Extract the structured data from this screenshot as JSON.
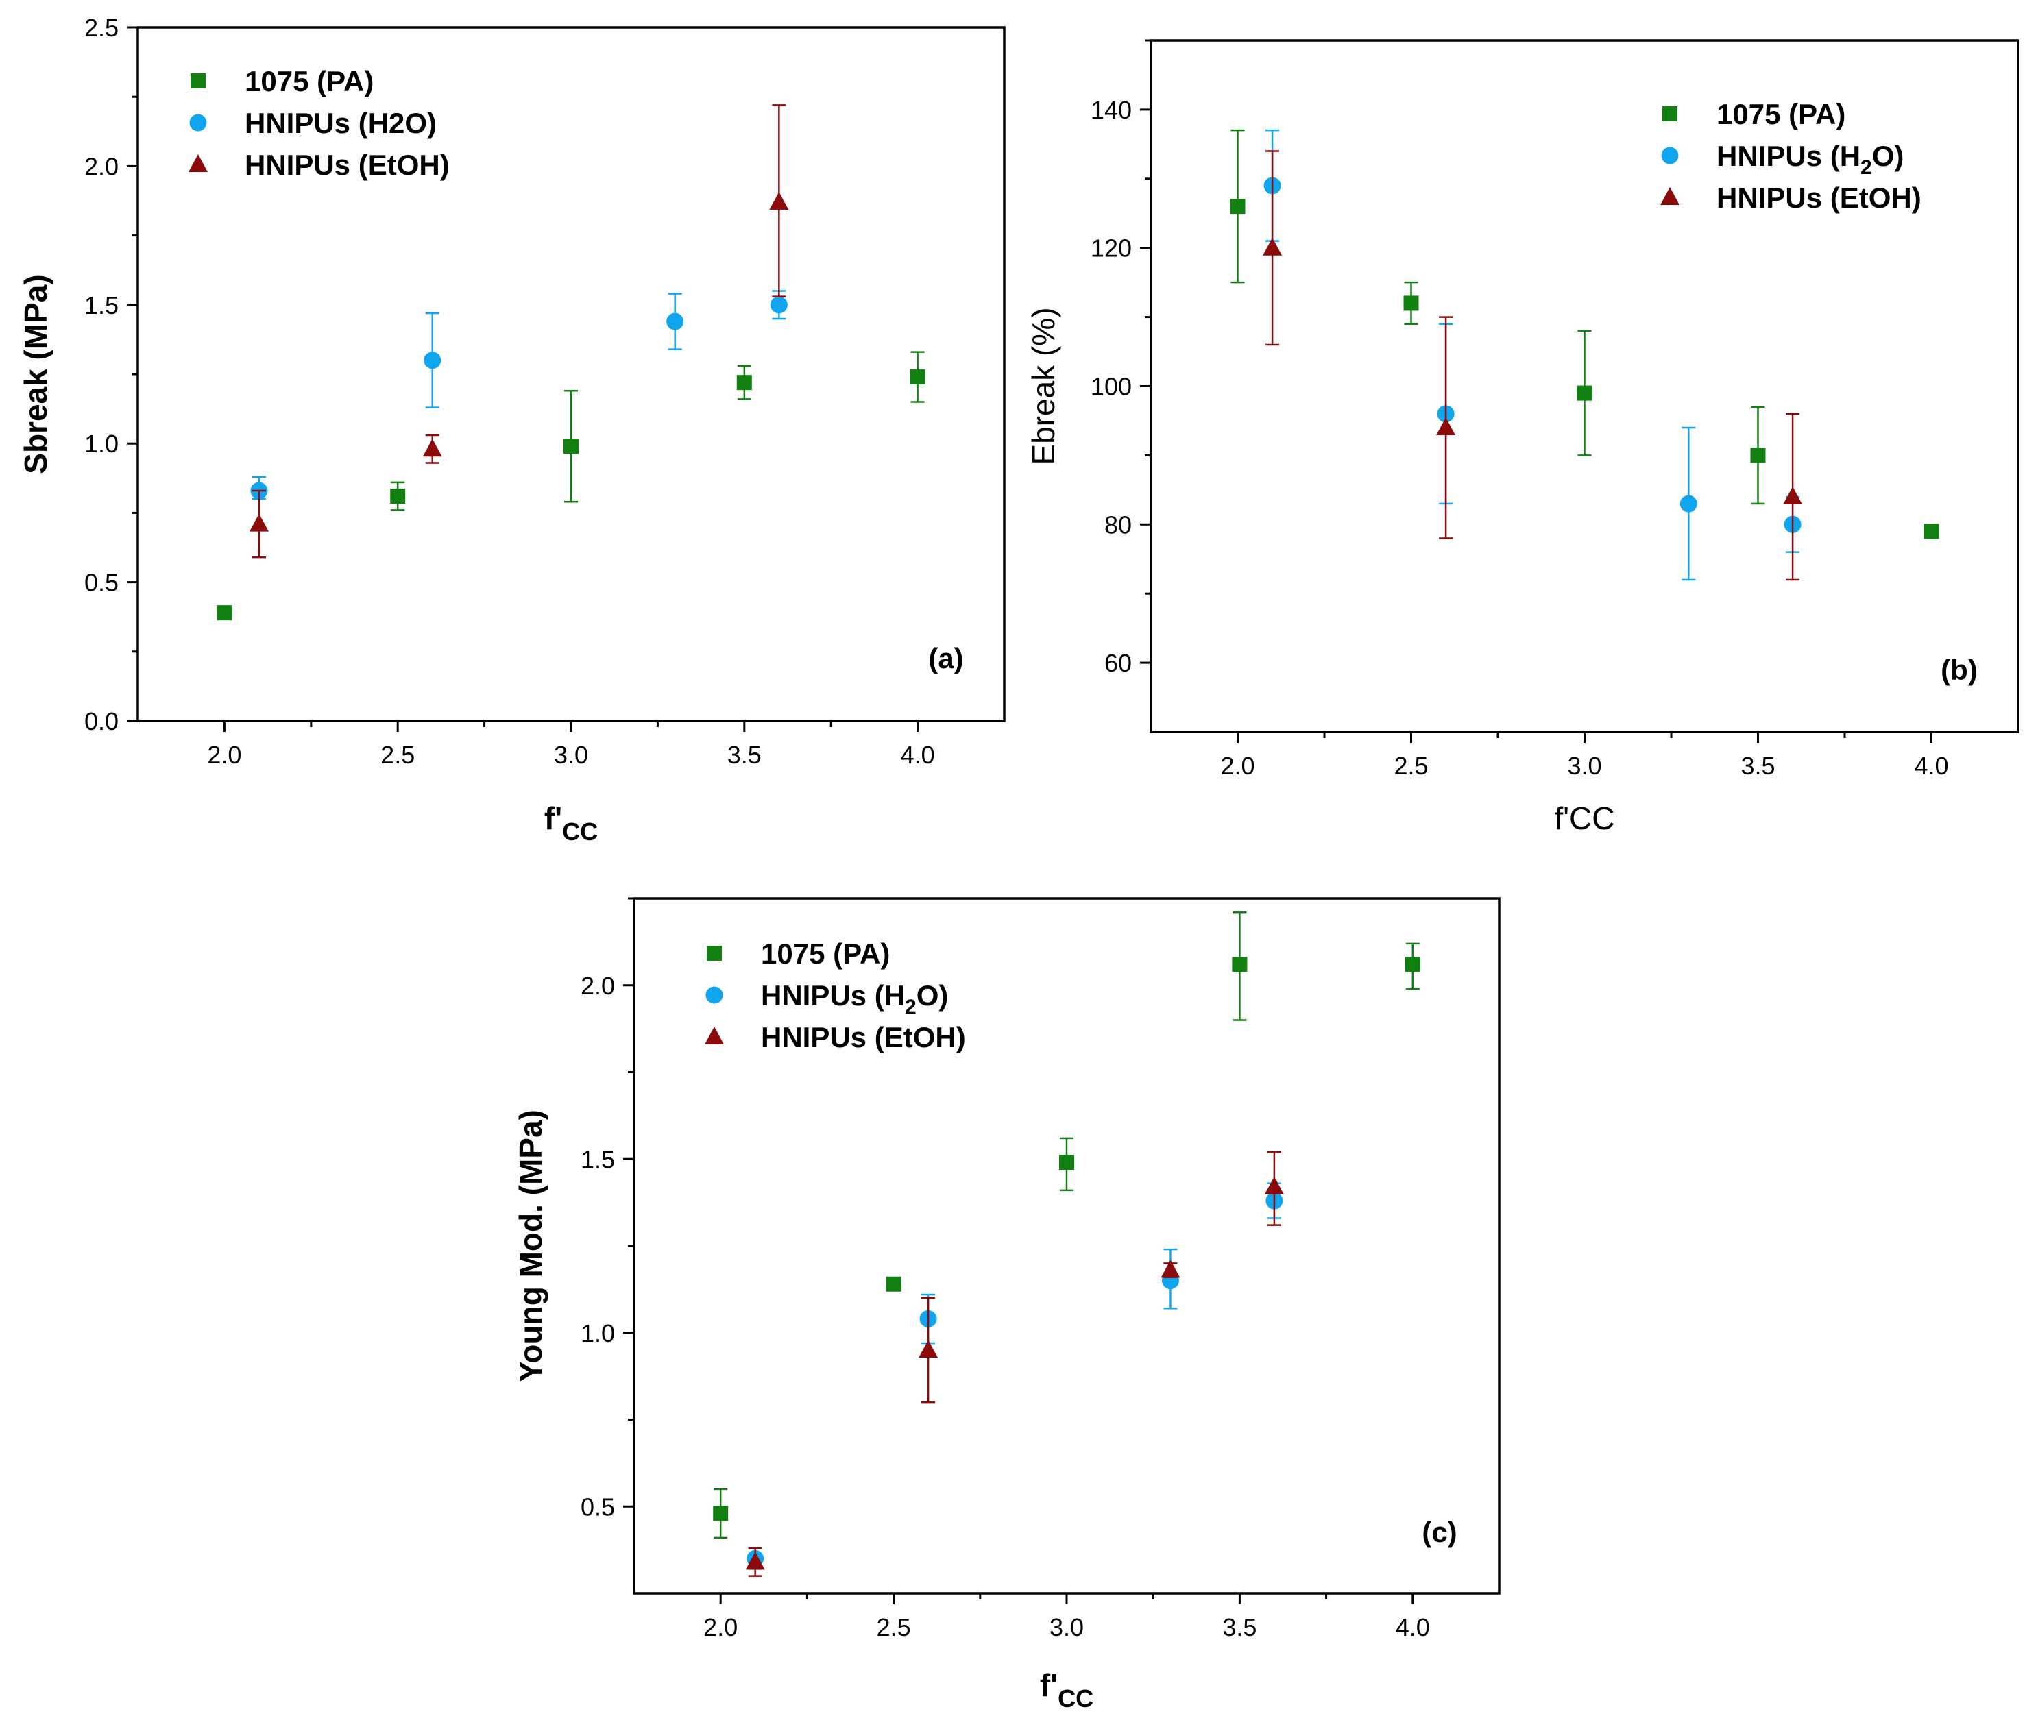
{
  "colors": {
    "pa": "#118011",
    "h2o": "#10a5ef",
    "etoh": "#8b0a0a"
  },
  "chart_data": [
    {
      "id": "a",
      "type": "scatter",
      "panel_label": "(a)",
      "xlabel_main": "f'",
      "xlabel_sub": "CC",
      "ylabel": "Sbreak (MPa)",
      "xlim": [
        1.75,
        4.25
      ],
      "ylim": [
        0.0,
        2.5
      ],
      "xticks": [
        "2.0",
        "2.5",
        "3.0",
        "3.5",
        "4.0"
      ],
      "yticks": [
        "0.0",
        "0.5",
        "1.0",
        "1.5",
        "2.0",
        "2.5"
      ],
      "legend": [
        {
          "series": "pa",
          "marker": "square",
          "main": "1075 (PA)"
        },
        {
          "series": "h2o",
          "marker": "circle",
          "main": "HNIPUs (H2O)"
        },
        {
          "series": "etoh",
          "marker": "triangle",
          "main": "HNIPUs  (EtOH)"
        }
      ],
      "series": [
        {
          "key": "pa",
          "name": "1075 (PA)",
          "marker": "square",
          "points": [
            {
              "x": 2.0,
              "y": 0.39,
              "lo": 0.39,
              "hi": 0.39
            },
            {
              "x": 2.5,
              "y": 0.81,
              "lo": 0.76,
              "hi": 0.86
            },
            {
              "x": 3.0,
              "y": 0.99,
              "lo": 0.79,
              "hi": 1.19
            },
            {
              "x": 3.5,
              "y": 1.22,
              "lo": 1.16,
              "hi": 1.28
            },
            {
              "x": 4.0,
              "y": 1.24,
              "lo": 1.15,
              "hi": 1.33
            }
          ]
        },
        {
          "key": "h2o",
          "name": "HNIPUs (H2O)",
          "marker": "circle",
          "points": [
            {
              "x": 2.1,
              "y": 0.83,
              "lo": 0.8,
              "hi": 0.88
            },
            {
              "x": 2.6,
              "y": 1.3,
              "lo": 1.13,
              "hi": 1.47
            },
            {
              "x": 3.3,
              "y": 1.44,
              "lo": 1.34,
              "hi": 1.54
            },
            {
              "x": 3.6,
              "y": 1.5,
              "lo": 1.45,
              "hi": 1.55
            }
          ]
        },
        {
          "key": "etoh",
          "name": "HNIPUs (EtOH)",
          "marker": "triangle",
          "points": [
            {
              "x": 2.1,
              "y": 0.71,
              "lo": 0.59,
              "hi": 0.83
            },
            {
              "x": 2.6,
              "y": 0.98,
              "lo": 0.93,
              "hi": 1.03
            },
            {
              "x": 3.6,
              "y": 1.87,
              "lo": 1.53,
              "hi": 2.22
            }
          ]
        }
      ]
    },
    {
      "id": "b",
      "type": "scatter",
      "panel_label": "(b)",
      "xlabel_main": "f'CC",
      "xlabel_sub": "",
      "ylabel": "Ebreak (%)",
      "xlim": [
        1.75,
        4.25
      ],
      "ylim": [
        50,
        150
      ],
      "xticks": [
        "2.0",
        "2.5",
        "3.0",
        "3.5",
        "4.0"
      ],
      "yticks": [
        "60",
        "80",
        "100",
        "120",
        "140"
      ],
      "legend": [
        {
          "series": "pa",
          "marker": "square",
          "main": "1075 (PA)"
        },
        {
          "series": "h2o",
          "marker": "circle",
          "main": "HNIPUs (H",
          "sub": "2",
          "tail": "O)"
        },
        {
          "series": "etoh",
          "marker": "triangle",
          "main": "HNIPUs (EtOH)"
        }
      ],
      "series": [
        {
          "key": "pa",
          "name": "1075 (PA)",
          "marker": "square",
          "points": [
            {
              "x": 2.0,
              "y": 126,
              "lo": 115,
              "hi": 137
            },
            {
              "x": 2.5,
              "y": 112,
              "lo": 109,
              "hi": 115
            },
            {
              "x": 3.0,
              "y": 99,
              "lo": 90,
              "hi": 108
            },
            {
              "x": 3.5,
              "y": 90,
              "lo": 83,
              "hi": 97
            },
            {
              "x": 4.0,
              "y": 79,
              "lo": 79,
              "hi": 79
            }
          ]
        },
        {
          "key": "h2o",
          "name": "HNIPUs (H2O)",
          "marker": "circle",
          "points": [
            {
              "x": 2.1,
              "y": 129,
              "lo": 121,
              "hi": 137
            },
            {
              "x": 2.6,
              "y": 96,
              "lo": 83,
              "hi": 109
            },
            {
              "x": 3.3,
              "y": 83,
              "lo": 72,
              "hi": 94
            },
            {
              "x": 3.6,
              "y": 80,
              "lo": 76,
              "hi": 84
            }
          ]
        },
        {
          "key": "etoh",
          "name": "HNIPUs (EtOH)",
          "marker": "triangle",
          "points": [
            {
              "x": 2.1,
              "y": 120,
              "lo": 106,
              "hi": 134
            },
            {
              "x": 2.6,
              "y": 94,
              "lo": 78,
              "hi": 110
            },
            {
              "x": 3.6,
              "y": 84,
              "lo": 72,
              "hi": 96
            }
          ]
        }
      ]
    },
    {
      "id": "c",
      "type": "scatter",
      "panel_label": "(c)",
      "xlabel_main": "f'",
      "xlabel_sub": "CC",
      "ylabel": "Young Mod. (MPa)",
      "xlim": [
        1.75,
        4.25
      ],
      "ylim": [
        0.25,
        2.25
      ],
      "xticks": [
        "2.0",
        "2.5",
        "3.0",
        "3.5",
        "4.0"
      ],
      "yticks": [
        "0.5",
        "1.0",
        "1.5",
        "2.0"
      ],
      "legend": [
        {
          "series": "pa",
          "marker": "square",
          "main": "1075 (PA)"
        },
        {
          "series": "h2o",
          "marker": "circle",
          "main": "HNIPUs (H",
          "sub": "2",
          "tail": "O)"
        },
        {
          "series": "etoh",
          "marker": "triangle",
          "main": "HNIPUs (EtOH)"
        }
      ],
      "series": [
        {
          "key": "pa",
          "name": "1075 (PA)",
          "marker": "square",
          "points": [
            {
              "x": 2.0,
              "y": 0.48,
              "lo": 0.41,
              "hi": 0.55
            },
            {
              "x": 2.5,
              "y": 1.14,
              "lo": 1.14,
              "hi": 1.14
            },
            {
              "x": 3.0,
              "y": 1.49,
              "lo": 1.41,
              "hi": 1.56
            },
            {
              "x": 3.5,
              "y": 2.06,
              "lo": 1.9,
              "hi": 2.21
            },
            {
              "x": 4.0,
              "y": 2.06,
              "lo": 1.99,
              "hi": 2.12
            }
          ]
        },
        {
          "key": "h2o",
          "name": "HNIPUs (H2O)",
          "marker": "circle",
          "points": [
            {
              "x": 2.1,
              "y": 0.35,
              "lo": 0.32,
              "hi": 0.38
            },
            {
              "x": 2.6,
              "y": 1.04,
              "lo": 0.97,
              "hi": 1.11
            },
            {
              "x": 3.3,
              "y": 1.15,
              "lo": 1.07,
              "hi": 1.24
            },
            {
              "x": 3.6,
              "y": 1.38,
              "lo": 1.33,
              "hi": 1.43
            }
          ]
        },
        {
          "key": "etoh",
          "name": "HNIPUs (EtOH)",
          "marker": "triangle",
          "points": [
            {
              "x": 2.1,
              "y": 0.34,
              "lo": 0.3,
              "hi": 0.38
            },
            {
              "x": 2.6,
              "y": 0.95,
              "lo": 0.8,
              "hi": 1.1
            },
            {
              "x": 3.3,
              "y": 1.18,
              "lo": 1.16,
              "hi": 1.2
            },
            {
              "x": 3.6,
              "y": 1.42,
              "lo": 1.31,
              "hi": 1.52
            }
          ]
        }
      ]
    }
  ]
}
